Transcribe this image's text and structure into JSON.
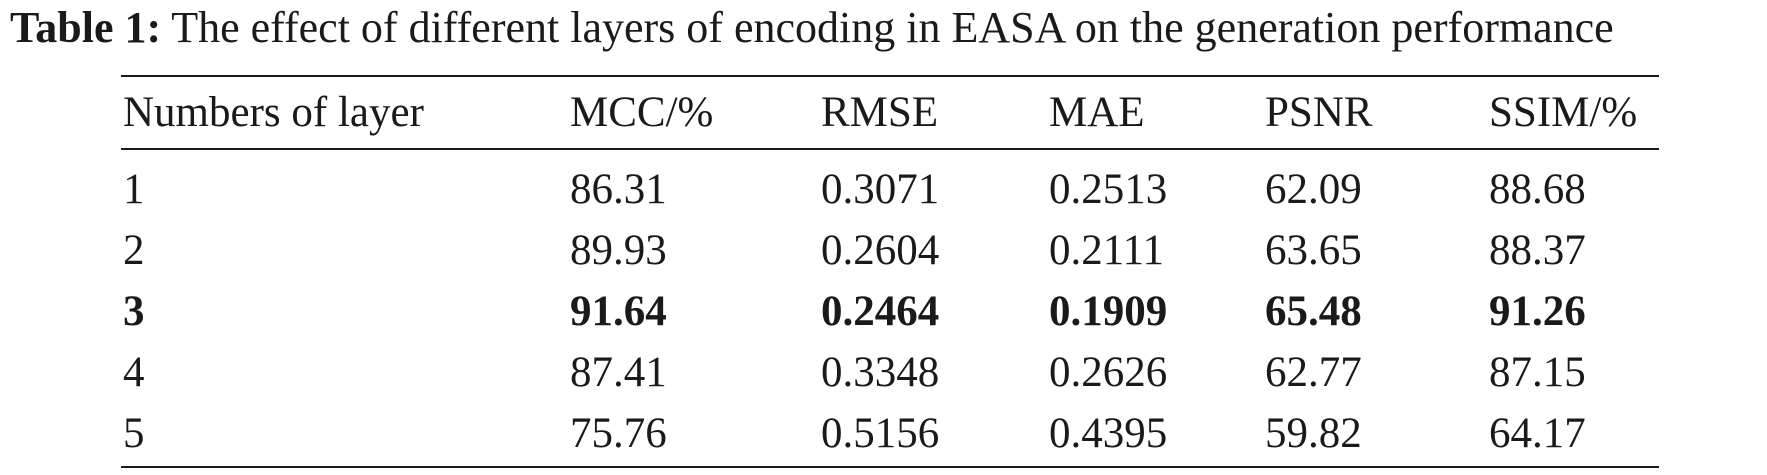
{
  "caption": {
    "label": "Table 1:",
    "text": "The effect of different layers of encoding in EASA on the generation performance"
  },
  "table": {
    "headers": [
      "Numbers of layer",
      "MCC/%",
      "RMSE",
      "MAE",
      "PSNR",
      "SSIM/%"
    ],
    "rows": [
      {
        "bold": false,
        "cells": [
          "1",
          "86.31",
          "0.3071",
          "0.2513",
          "62.09",
          "88.68"
        ]
      },
      {
        "bold": false,
        "cells": [
          "2",
          "89.93",
          "0.2604",
          "0.2111",
          "63.65",
          "88.37"
        ]
      },
      {
        "bold": true,
        "cells": [
          "3",
          "91.64",
          "0.2464",
          "0.1909",
          "65.48",
          "91.26"
        ]
      },
      {
        "bold": false,
        "cells": [
          "4",
          "87.41",
          "0.3348",
          "0.2626",
          "62.77",
          "87.15"
        ]
      },
      {
        "bold": false,
        "cells": [
          "5",
          "75.76",
          "0.5156",
          "0.4395",
          "59.82",
          "64.17"
        ]
      }
    ]
  }
}
